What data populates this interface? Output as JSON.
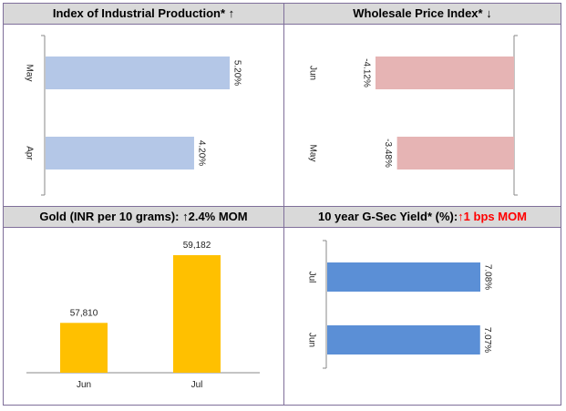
{
  "panels": {
    "iip": {
      "title": "Index of Industrial Production* ↑"
    },
    "wpi": {
      "title": "Wholesale Price Index* ↓"
    },
    "gold": {
      "title_main": "Gold (INR per 10 grams): ↑",
      "title_delta": "2.4% MOM"
    },
    "gsec": {
      "title_main": "10 year G-Sec Yield* (%):",
      "title_delta": "↑1 bps MOM"
    }
  },
  "chart_data": [
    {
      "id": "iip",
      "type": "bar",
      "orientation": "horizontal",
      "title": "Index of Industrial Production* ↑",
      "categories": [
        "May",
        "Apr"
      ],
      "values": [
        5.2,
        4.2
      ],
      "labels": [
        "5.20%",
        "4.20%"
      ],
      "xlim": [
        0,
        5.2
      ],
      "color": "#b4c7e7"
    },
    {
      "id": "wpi",
      "type": "bar",
      "orientation": "horizontal",
      "title": "Wholesale Price Index* ↓",
      "categories": [
        "Jun",
        "May"
      ],
      "values": [
        -4.12,
        -3.48
      ],
      "labels": [
        "-4.12%",
        "-3.48%"
      ],
      "xlim": [
        -4.12,
        0
      ],
      "color": "#e6b4b4"
    },
    {
      "id": "gold",
      "type": "bar",
      "orientation": "vertical",
      "title": "Gold (INR per 10 grams): ↑2.4% MOM",
      "categories": [
        "Jun",
        "Jul"
      ],
      "values": [
        57810,
        59182
      ],
      "labels": [
        "57,810",
        "59,182"
      ],
      "ylim": [
        56800,
        59182
      ],
      "color": "#ffc000"
    },
    {
      "id": "gsec",
      "type": "bar",
      "orientation": "horizontal",
      "title": "10 year G-Sec Yield* (%):↑1 bps MOM",
      "categories": [
        "Jul",
        "Jun"
      ],
      "values": [
        7.08,
        7.07
      ],
      "labels": [
        "7.08%",
        "7.07%"
      ],
      "xlim": [
        0,
        7.08
      ],
      "color": "#5b8fd6"
    }
  ]
}
